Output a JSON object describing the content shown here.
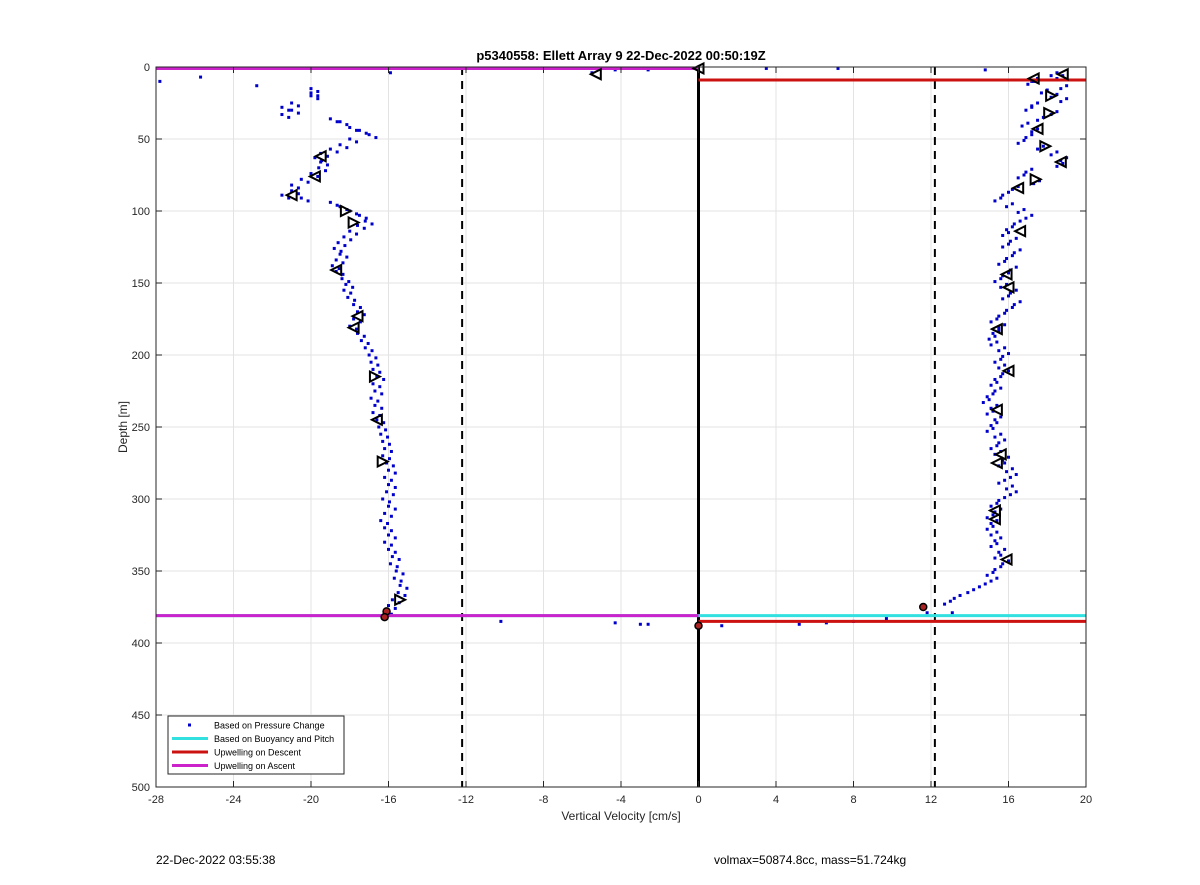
{
  "chart_data": {
    "type": "scatter",
    "title": "p5340558: Ellett Array 9 22-Dec-2022 00:50:19Z",
    "xlabel": "Vertical Velocity [cm/s]",
    "ylabel": "Depth [m]",
    "xlim": [
      -28,
      20
    ],
    "ylim": [
      0,
      500
    ],
    "y_reversed": true,
    "grid": true,
    "xticks": [
      -28,
      -24,
      -20,
      -16,
      -12,
      -8,
      -4,
      0,
      4,
      8,
      12,
      16,
      20
    ],
    "yticks": [
      0,
      50,
      100,
      150,
      200,
      250,
      300,
      350,
      400,
      450,
      500
    ],
    "colors": {
      "points": "#0000CC",
      "buoyancy": "#33E0E0",
      "descent": "#CC1111",
      "ascent": "#CC22CC",
      "zero_line": "#000000",
      "threshold_line": "#000000",
      "markers": "#000000"
    },
    "legend": {
      "location": "bottom-left",
      "entries": [
        {
          "label": "Based on Pressure Change",
          "style": "dot",
          "color": "#0000CC"
        },
        {
          "label": "Based on Buoyancy and Pitch",
          "style": "line",
          "color": "#33E0E0"
        },
        {
          "label": "Upwelling on Descent",
          "style": "line",
          "color": "#CC1111"
        },
        {
          "label": "Upwelling on Ascent",
          "style": "line",
          "color": "#CC22CC"
        }
      ]
    },
    "reference_lines": {
      "zero_x": 0,
      "threshold_x": [
        -12.2,
        12.2
      ]
    },
    "upwelling_lines": [
      {
        "series": "ascent",
        "x": [
          -28,
          0
        ],
        "y": [
          1,
          1
        ]
      },
      {
        "series": "descent",
        "x": [
          0,
          20
        ],
        "y": [
          9,
          9
        ]
      },
      {
        "series": "buoyancy",
        "x": [
          -28,
          20
        ],
        "y": [
          381,
          381
        ]
      },
      {
        "series": "descent",
        "x": [
          0,
          20
        ],
        "y": [
          385,
          385
        ]
      },
      {
        "series": "ascent",
        "x": [
          -28,
          0
        ],
        "y": [
          381,
          381
        ]
      }
    ],
    "descent_profile": [
      [
        -20,
        15
      ],
      [
        -20,
        18
      ],
      [
        -20,
        20
      ],
      [
        -21,
        25
      ],
      [
        -21.5,
        28
      ],
      [
        -21,
        30
      ],
      [
        -21.5,
        33
      ],
      [
        -19,
        36
      ],
      [
        -18.5,
        38
      ],
      [
        -18,
        42
      ],
      [
        -17.5,
        44
      ],
      [
        -17,
        47
      ],
      [
        -18,
        50
      ],
      [
        -18.5,
        54
      ],
      [
        -19,
        57
      ],
      [
        -19.5,
        60
      ],
      [
        -19.8,
        63
      ],
      [
        -19.5,
        66
      ],
      [
        -19.6,
        70
      ],
      [
        -20,
        74
      ],
      [
        -20.5,
        78
      ],
      [
        -21,
        82
      ],
      [
        -21,
        86
      ],
      [
        -21.5,
        89
      ],
      [
        -20.5,
        91
      ],
      [
        -19,
        94
      ],
      [
        -18.5,
        97
      ],
      [
        -18,
        100
      ],
      [
        -17.5,
        103
      ],
      [
        -17.2,
        107
      ],
      [
        -17.6,
        110
      ],
      [
        -18,
        114
      ],
      [
        -18.3,
        118
      ],
      [
        -18.6,
        122
      ],
      [
        -18.8,
        126
      ],
      [
        -18.5,
        130
      ],
      [
        -18.7,
        134
      ],
      [
        -18.9,
        138
      ],
      [
        -18.7,
        142
      ],
      [
        -18.4,
        147
      ],
      [
        -18.2,
        151
      ],
      [
        -18.3,
        155
      ],
      [
        -18.1,
        160
      ],
      [
        -17.8,
        165
      ],
      [
        -17.6,
        170
      ],
      [
        -17.8,
        175
      ],
      [
        -18.0,
        180
      ],
      [
        -17.6,
        185
      ],
      [
        -17.4,
        190
      ],
      [
        -17.2,
        195
      ],
      [
        -17.0,
        200
      ],
      [
        -16.9,
        205
      ],
      [
        -16.8,
        210
      ],
      [
        -16.6,
        215
      ],
      [
        -16.8,
        220
      ],
      [
        -16.7,
        225
      ],
      [
        -16.9,
        230
      ],
      [
        -16.7,
        235
      ],
      [
        -16.8,
        240
      ],
      [
        -16.6,
        245
      ],
      [
        -16.5,
        250
      ],
      [
        -16.4,
        255
      ],
      [
        -16.3,
        260
      ],
      [
        -16.2,
        265
      ],
      [
        -16.3,
        270
      ],
      [
        -16.1,
        275
      ],
      [
        -16.0,
        280
      ],
      [
        -16.2,
        285
      ],
      [
        -16.0,
        290
      ],
      [
        -16.1,
        295
      ],
      [
        -16.3,
        300
      ],
      [
        -16.0,
        305
      ],
      [
        -16.2,
        310
      ],
      [
        -16.4,
        315
      ],
      [
        -16.2,
        320
      ],
      [
        -16.0,
        325
      ],
      [
        -16.2,
        330
      ],
      [
        -16.0,
        335
      ],
      [
        -15.8,
        340
      ],
      [
        -15.9,
        345
      ],
      [
        -15.6,
        350
      ],
      [
        -15.7,
        355
      ],
      [
        -15.4,
        360
      ],
      [
        -15.5,
        365
      ],
      [
        -15.8,
        370
      ],
      [
        -16.0,
        374
      ],
      [
        -16.2,
        378
      ]
    ],
    "ascent_profile": [
      [
        18.5,
        4
      ],
      [
        18.8,
        6
      ],
      [
        17.5,
        8
      ],
      [
        17.3,
        10
      ],
      [
        19.0,
        13
      ],
      [
        18.0,
        16
      ],
      [
        18.5,
        19
      ],
      [
        19.0,
        22
      ],
      [
        17.5,
        25
      ],
      [
        17.2,
        28
      ],
      [
        18.5,
        31
      ],
      [
        17.8,
        35
      ],
      [
        17.0,
        39
      ],
      [
        17.5,
        43
      ],
      [
        17.2,
        47
      ],
      [
        16.8,
        51
      ],
      [
        17.8,
        55
      ],
      [
        18.5,
        59
      ],
      [
        19.0,
        63
      ],
      [
        18.8,
        67
      ],
      [
        17.2,
        71
      ],
      [
        16.8,
        75
      ],
      [
        17.6,
        79
      ],
      [
        16.5,
        83
      ],
      [
        16.0,
        87
      ],
      [
        15.6,
        91
      ],
      [
        16.2,
        95
      ],
      [
        16.8,
        99
      ],
      [
        17.2,
        103
      ],
      [
        16.6,
        107
      ],
      [
        16.2,
        111
      ],
      [
        16.0,
        115
      ],
      [
        16.4,
        119
      ],
      [
        16.0,
        123
      ],
      [
        16.6,
        127
      ],
      [
        16.2,
        131
      ],
      [
        15.8,
        135
      ],
      [
        16.4,
        139
      ],
      [
        16.0,
        143
      ],
      [
        15.6,
        147
      ],
      [
        15.9,
        151
      ],
      [
        16.4,
        155
      ],
      [
        16.0,
        159
      ],
      [
        16.6,
        163
      ],
      [
        16.2,
        167
      ],
      [
        15.8,
        171
      ],
      [
        15.4,
        175
      ],
      [
        15.8,
        179
      ],
      [
        15.5,
        183
      ],
      [
        15.3,
        187
      ],
      [
        15.4,
        191
      ],
      [
        15.8,
        195
      ],
      [
        16.0,
        199
      ],
      [
        15.6,
        203
      ],
      [
        15.8,
        207
      ],
      [
        16.0,
        211
      ],
      [
        15.6,
        215
      ],
      [
        15.4,
        219
      ],
      [
        15.6,
        223
      ],
      [
        15.2,
        227
      ],
      [
        15.0,
        231
      ],
      [
        15.4,
        235
      ],
      [
        15.2,
        239
      ],
      [
        15.6,
        243
      ],
      [
        15.4,
        247
      ],
      [
        15.2,
        251
      ],
      [
        15.6,
        255
      ],
      [
        15.8,
        259
      ],
      [
        15.4,
        263
      ],
      [
        15.6,
        267
      ],
      [
        16.0,
        271
      ],
      [
        15.8,
        275
      ],
      [
        16.2,
        279
      ],
      [
        16.4,
        283
      ],
      [
        15.8,
        287
      ],
      [
        16.2,
        291
      ],
      [
        16.4,
        295
      ],
      [
        15.8,
        299
      ],
      [
        15.4,
        303
      ],
      [
        15.6,
        307
      ],
      [
        15.2,
        311
      ],
      [
        15.4,
        315
      ],
      [
        15.2,
        319
      ],
      [
        15.4,
        323
      ],
      [
        15.6,
        327
      ],
      [
        15.4,
        331
      ],
      [
        15.8,
        335
      ],
      [
        15.6,
        339
      ],
      [
        16.0,
        343
      ],
      [
        15.6,
        347
      ],
      [
        15.2,
        351
      ],
      [
        15.4,
        355
      ],
      [
        14.8,
        359
      ],
      [
        14.2,
        363
      ],
      [
        13.5,
        367
      ],
      [
        13.0,
        371
      ]
    ],
    "surface_points": [
      [
        -27.8,
        10
      ],
      [
        -25.7,
        7
      ],
      [
        -22.8,
        13
      ],
      [
        -15.9,
        4
      ],
      [
        -5.5,
        4
      ],
      [
        -4.3,
        2
      ],
      [
        -2.6,
        2
      ],
      [
        3.5,
        1
      ],
      [
        7.2,
        1
      ],
      [
        14.8,
        2
      ]
    ],
    "bottom_points": [
      [
        -10.2,
        385
      ],
      [
        -4.3,
        386
      ],
      [
        -3.0,
        387
      ],
      [
        -2.6,
        387
      ],
      [
        1.2,
        388
      ],
      [
        5.2,
        387
      ],
      [
        6.6,
        386
      ],
      [
        8.0,
        385
      ],
      [
        9.7,
        383
      ],
      [
        11.8,
        379
      ],
      [
        13.1,
        379
      ]
    ],
    "triangle_markers": [
      [
        -19.5,
        62,
        "left"
      ],
      [
        -19.8,
        76,
        "left"
      ],
      [
        -21,
        89,
        "left"
      ],
      [
        -18.2,
        100,
        "right"
      ],
      [
        -17.8,
        108,
        "right"
      ],
      [
        -18.7,
        141,
        "left"
      ],
      [
        -17.6,
        173,
        "left"
      ],
      [
        -17.8,
        181,
        "left"
      ],
      [
        -16.7,
        215,
        "right"
      ],
      [
        -16.6,
        245,
        "left"
      ],
      [
        -16.3,
        274,
        "right"
      ],
      [
        -15.4,
        370,
        "right"
      ],
      [
        -5.3,
        5,
        "left"
      ],
      [
        0,
        1,
        "left"
      ],
      [
        18.8,
        5,
        "left"
      ],
      [
        17.3,
        8,
        "left"
      ],
      [
        18.2,
        20,
        "right"
      ],
      [
        18.1,
        32,
        "right"
      ],
      [
        17.5,
        43,
        "left"
      ],
      [
        17.9,
        55,
        "right"
      ],
      [
        18.7,
        66,
        "left"
      ],
      [
        17.4,
        78,
        "right"
      ],
      [
        16.5,
        84,
        "left"
      ],
      [
        16.6,
        114,
        "left"
      ],
      [
        15.9,
        144,
        "left"
      ],
      [
        16.0,
        153,
        "left"
      ],
      [
        15.4,
        182,
        "left"
      ],
      [
        16.0,
        211,
        "left"
      ],
      [
        15.4,
        238,
        "left"
      ],
      [
        15.6,
        269,
        "left"
      ],
      [
        15.4,
        275,
        "left"
      ],
      [
        15.3,
        308,
        "left"
      ],
      [
        15.3,
        314,
        "left"
      ],
      [
        15.9,
        342,
        "left"
      ]
    ],
    "end_markers": [
      [
        -16.1,
        378
      ],
      [
        -16.2,
        382
      ],
      [
        0,
        388
      ],
      [
        11.6,
        375
      ]
    ]
  },
  "footer": {
    "left": "22-Dec-2022 03:55:38",
    "right": "volmax=50874.8cc, mass=51.724kg"
  }
}
